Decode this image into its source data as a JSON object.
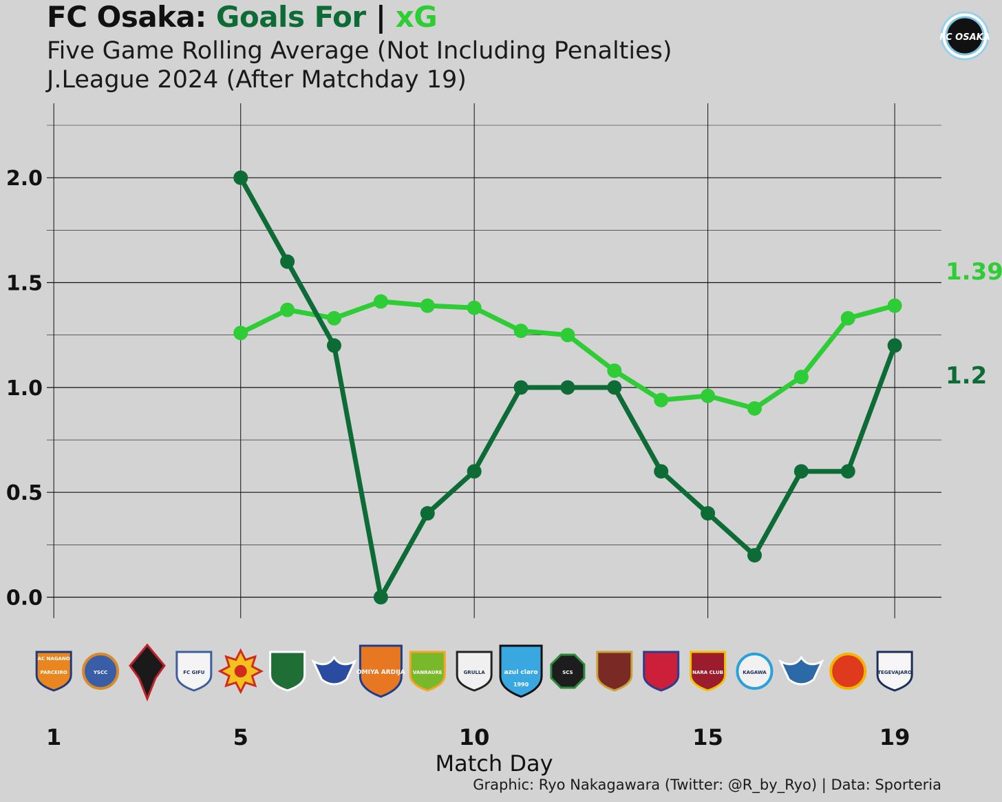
{
  "title": {
    "team": "FC Osaka:",
    "goals_for": "Goals For",
    "separator": "|",
    "xg": "xG"
  },
  "subtitle_line1": "Five Game Rolling Average (Not Including Penalties)",
  "subtitle_line2": "J.League 2024 (After Matchday 19)",
  "credit": "Graphic: Ryo Nakagawara (Twitter: @R_by_Ryo) | Data: Sporteria",
  "logo_icon": "fc-osaka-crest-icon",
  "colors": {
    "background": "#d3d3d3",
    "goals_for": "#0d6b35",
    "xg": "#2ecc35",
    "grid": "#111111",
    "text": "#111111"
  },
  "chart_data": {
    "type": "line",
    "xlabel": "Match Day",
    "ylabel": "",
    "xlim": [
      0.85,
      20
    ],
    "ylim": [
      -0.1,
      2.25
    ],
    "x_ticks": [
      1,
      5,
      10,
      15,
      19
    ],
    "y_ticks": [
      0.0,
      0.5,
      1.0,
      1.5,
      2.0
    ],
    "y_tick_labels": [
      "0.0",
      "0.5",
      "1.0",
      "1.5",
      "2.0"
    ],
    "grid": true,
    "series": [
      {
        "name": "Goals For",
        "color": "#0d6b35",
        "x": [
          5,
          6,
          7,
          8,
          9,
          10,
          11,
          12,
          13,
          14,
          15,
          16,
          17,
          18,
          19
        ],
        "values": [
          2.0,
          1.6,
          1.2,
          0.0,
          0.4,
          0.6,
          1.0,
          1.0,
          1.0,
          0.6,
          0.4,
          0.2,
          0.6,
          0.6,
          1.2
        ],
        "end_label": "1.2"
      },
      {
        "name": "xG",
        "color": "#2ecc35",
        "x": [
          5,
          6,
          7,
          8,
          9,
          10,
          11,
          12,
          13,
          14,
          15,
          16,
          17,
          18,
          19
        ],
        "values": [
          1.26,
          1.37,
          1.33,
          1.41,
          1.39,
          1.38,
          1.27,
          1.25,
          1.08,
          0.94,
          0.96,
          0.9,
          1.05,
          1.33,
          1.39
        ],
        "end_label": "1.39"
      }
    ],
    "opponent_logos": [
      {
        "matchday": 1,
        "icon": "ac-nagano-parceiro-logo-icon"
      },
      {
        "matchday": 2,
        "icon": "ys-yokohama-logo-icon"
      },
      {
        "matchday": 3,
        "icon": "tegevajaro-miyazaki-logo-icon"
      },
      {
        "matchday": 4,
        "icon": "fc-gifu-logo-icon"
      },
      {
        "matchday": 5,
        "icon": "giravanz-kitakyushu-logo-icon"
      },
      {
        "matchday": 6,
        "icon": "matsumoto-yamaga-logo-icon"
      },
      {
        "matchday": 7,
        "icon": "kataller-toyama-logo-icon"
      },
      {
        "matchday": 8,
        "icon": "omiya-ardija-logo-icon"
      },
      {
        "matchday": 9,
        "icon": "vanraure-hachinohe-logo-icon"
      },
      {
        "matchday": 10,
        "icon": "iwate-grulla-logo-icon"
      },
      {
        "matchday": 11,
        "icon": "azul-claro-numazu-logo-icon"
      },
      {
        "matchday": 12,
        "icon": "sc-sagamihara-logo-icon"
      },
      {
        "matchday": 13,
        "icon": "fc-imabari-logo-icon"
      },
      {
        "matchday": 14,
        "icon": "fc-ryukyu-logo-icon"
      },
      {
        "matchday": 15,
        "icon": "nara-club-logo-icon"
      },
      {
        "matchday": 16,
        "icon": "kamatamare-sanuki-logo-icon"
      },
      {
        "matchday": 17,
        "icon": "gainare-tottori-logo-icon"
      },
      {
        "matchday": 18,
        "icon": "fukushima-united-logo-icon"
      },
      {
        "matchday": 19,
        "icon": "tegevajaro-miyazaki-logo-icon"
      }
    ]
  },
  "logo_texts": {
    "nagano": "AC NAGANO",
    "parceiro": "PARCEIRO",
    "vscc": "YSCC",
    "fcgifu": "FC GIFU",
    "omiya": "OMIYA ARDIJA",
    "vanraure": "VANRAURE",
    "grulla": "GRULLA",
    "azul": "azul claro",
    "azul_year": "1990",
    "scs": "SCS",
    "nara": "NARA CLUB",
    "kagawa": "KAGAWA",
    "tegevajaro": "TEGEVAJARO",
    "osaka": "FC OSAKA"
  }
}
